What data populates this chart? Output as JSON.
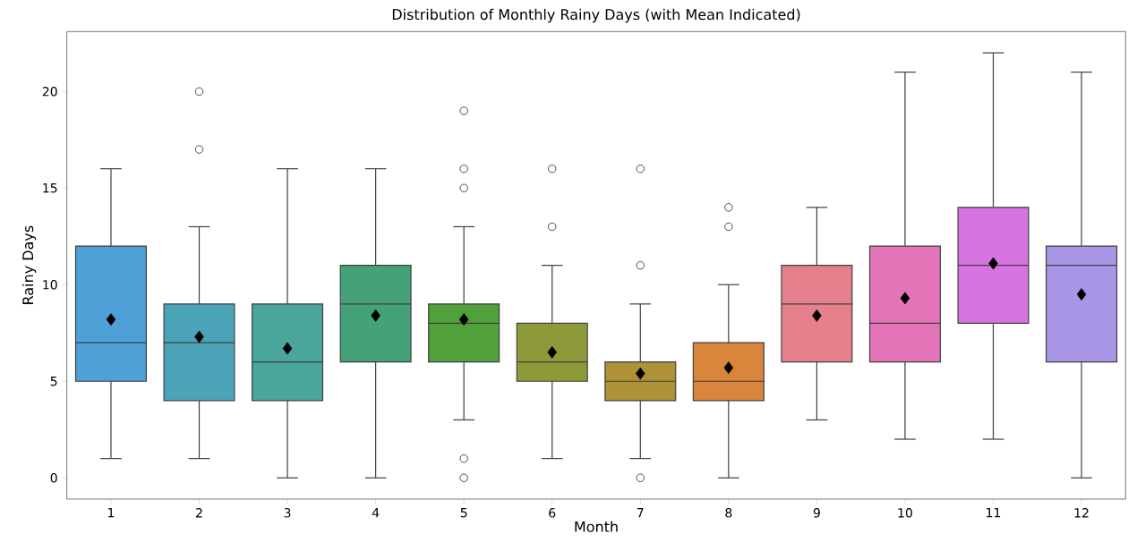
{
  "chart_data": {
    "type": "box",
    "title": "Distribution of Monthly Rainy Days (with Mean Indicated)",
    "xlabel": "Month",
    "ylabel": "Rainy Days",
    "categories": [
      "1",
      "2",
      "3",
      "4",
      "5",
      "6",
      "7",
      "8",
      "9",
      "10",
      "11",
      "12"
    ],
    "colors": [
      "#50a0d8",
      "#4ba3b8",
      "#4aa59a",
      "#45a278",
      "#52a03a",
      "#8e9a3a",
      "#ae9235",
      "#d9853c",
      "#e7808d",
      "#e474b8",
      "#d874e2",
      "#a996e6"
    ],
    "boxes": [
      {
        "low": 1,
        "q1": 5,
        "median": 7,
        "q3": 12,
        "high": 16,
        "mean": 8.2
      },
      {
        "low": 1,
        "q1": 4,
        "median": 7,
        "q3": 9,
        "high": 13,
        "mean": 7.3,
        "outliers": [
          17,
          20
        ]
      },
      {
        "low": 0,
        "q1": 4,
        "median": 6,
        "q3": 9,
        "high": 16,
        "mean": 6.7
      },
      {
        "low": 0,
        "q1": 6,
        "median": 9,
        "q3": 11,
        "high": 16,
        "mean": 8.4
      },
      {
        "low": 3,
        "q1": 6,
        "median": 8,
        "q3": 9,
        "high": 13,
        "mean": 8.2,
        "outliers": [
          0,
          1,
          15,
          16,
          19
        ]
      },
      {
        "low": 1,
        "q1": 5,
        "median": 6,
        "q3": 8,
        "high": 11,
        "mean": 6.5,
        "outliers": [
          13,
          16
        ]
      },
      {
        "low": 1,
        "q1": 4,
        "median": 5,
        "q3": 6,
        "high": 9,
        "mean": 5.4,
        "outliers": [
          0,
          11,
          16
        ]
      },
      {
        "low": 0,
        "q1": 4,
        "median": 5,
        "q3": 7,
        "high": 10,
        "mean": 5.7,
        "outliers": [
          13,
          14
        ]
      },
      {
        "low": 3,
        "q1": 6,
        "median": 9,
        "q3": 11,
        "high": 14,
        "mean": 8.4
      },
      {
        "low": 2,
        "q1": 6,
        "median": 8,
        "q3": 12,
        "high": 21,
        "mean": 9.3
      },
      {
        "low": 2,
        "q1": 8,
        "median": 11,
        "q3": 14,
        "high": 22,
        "mean": 11.1
      },
      {
        "low": 0,
        "q1": 6,
        "median": 11,
        "q3": 12,
        "high": 21,
        "mean": 9.5
      }
    ],
    "marker": "diamond",
    "ylim": [
      -1.1,
      23.1
    ],
    "yticks": [
      0,
      5,
      10,
      15,
      20
    ]
  }
}
